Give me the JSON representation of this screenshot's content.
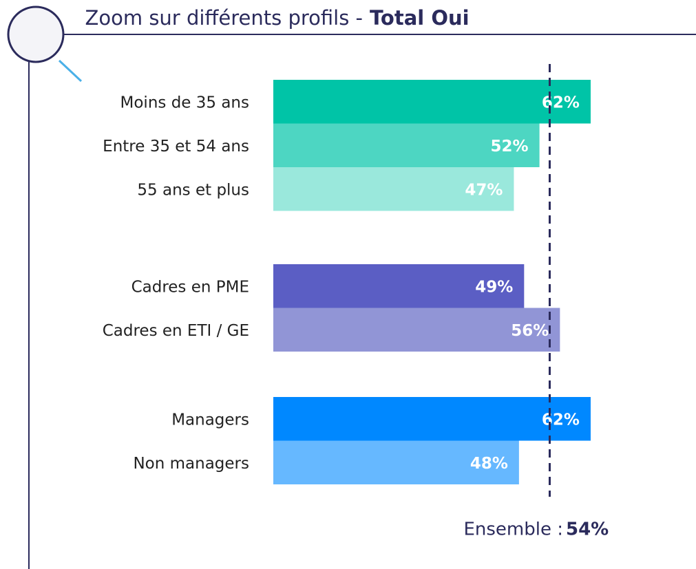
{
  "chart_data": {
    "type": "bar",
    "title": "Zoom sur différents profils -",
    "title_emphasis": "Total Oui",
    "groups": [
      {
        "categories": [
          "Moins de 35 ans",
          "Entre 35 et 54 ans",
          "55 ans et plus"
        ],
        "values": [
          62,
          52,
          47
        ],
        "value_labels": [
          "62%",
          "52%",
          "47%"
        ],
        "colors": [
          "#00c4a7",
          "#4dd6c2",
          "#9ae8dc"
        ]
      },
      {
        "categories": [
          "Cadres en PME",
          "Cadres en ETI / GE"
        ],
        "values": [
          49,
          56
        ],
        "value_labels": [
          "49%",
          "56%"
        ],
        "colors": [
          "#5b5ec4",
          "#9195d6"
        ]
      },
      {
        "categories": [
          "Managers",
          "Non managers"
        ],
        "values": [
          62,
          48
        ],
        "value_labels": [
          "62%",
          "48%"
        ],
        "colors": [
          "#0088ff",
          "#66b8ff"
        ]
      }
    ],
    "reference": {
      "label": "Ensemble :",
      "value": 54,
      "value_label": "54%"
    }
  }
}
